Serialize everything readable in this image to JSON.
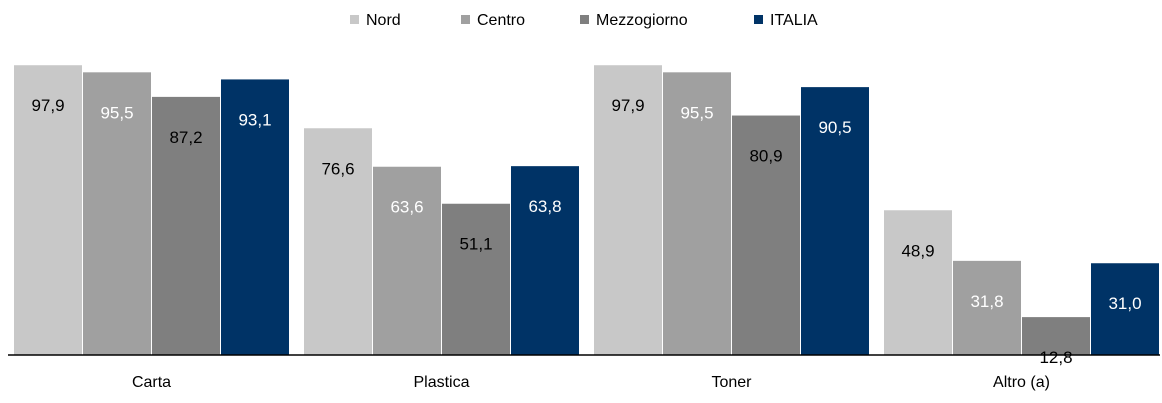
{
  "chart_data": {
    "type": "bar",
    "categories": [
      "Carta",
      "Plastica",
      "Toner",
      "Altro (a)"
    ],
    "series": [
      {
        "name": "Nord",
        "color": "#c8c8c8",
        "label_color": "#000000",
        "values": [
          97.9,
          76.6,
          97.9,
          48.9
        ]
      },
      {
        "name": "Centro",
        "color": "#a0a0a0",
        "label_color": "#ffffff",
        "values": [
          95.5,
          63.6,
          95.5,
          31.8
        ]
      },
      {
        "name": "Mezzogiorno",
        "color": "#7f7f7f",
        "label_color": "#000000",
        "values": [
          87.2,
          51.1,
          80.9,
          12.8
        ]
      },
      {
        "name": "ITALIA",
        "color": "#003366",
        "label_color": "#ffffff",
        "values": [
          93.1,
          63.8,
          90.5,
          31.0
        ]
      }
    ],
    "value_labels": [
      [
        "97,9",
        "76,6",
        "97,9",
        "48,9"
      ],
      [
        "95,5",
        "63,6",
        "95,5",
        "31,8"
      ],
      [
        "87,2",
        "51,1",
        "80,9",
        "12,8"
      ],
      [
        "93,1",
        "63,8",
        "90,5",
        "31,0"
      ]
    ],
    "ylim": [
      0,
      100
    ],
    "legend_position": "top-center",
    "grid": false,
    "title": "",
    "xlabel": "",
    "ylabel": ""
  }
}
